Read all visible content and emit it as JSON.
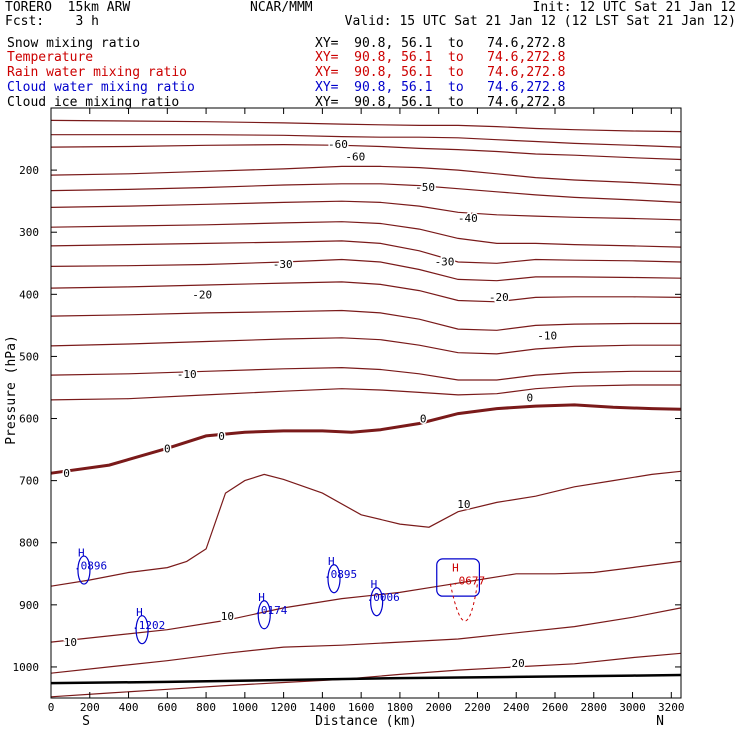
{
  "header": {
    "model": "TORERO  15km ARW",
    "center": "NCAR/MMM",
    "init": "Init: 12 UTC Sat 21 Jan 12",
    "fcst": "Fcst:    3 h",
    "valid": "Valid: 15 UTC Sat 21 Jan 12 (12 LST Sat 21 Jan 12)"
  },
  "colors": {
    "temperature": "#7a1a1a",
    "rain": "#cc0000",
    "cloud_water": "#0000cc",
    "ground": "#000000"
  },
  "chart_data": {
    "type": "cross-section contour",
    "fields": [
      {
        "name": "Snow mixing ratio",
        "color": "#000000",
        "xy": "XY=  90.8, 56.1  to   74.6,272.8"
      },
      {
        "name": "Temperature",
        "color": "#cc0000",
        "xy": "XY=  90.8, 56.1  to   74.6,272.8"
      },
      {
        "name": "Rain water mixing ratio",
        "color": "#cc0000",
        "xy": "XY=  90.8, 56.1  to   74.6,272.8"
      },
      {
        "name": "Cloud water mixing ratio",
        "color": "#0000cc",
        "xy": "XY=  90.8, 56.1  to   74.6,272.8"
      },
      {
        "name": "Cloud ice mixing ratio",
        "color": "#000000",
        "xy": "XY=  90.8, 56.1  to   74.6,272.8"
      }
    ],
    "xlabel": "Distance (km)",
    "ylabel": "Pressure (hPa)",
    "xlim": [
      0,
      3250
    ],
    "ylim": [
      1050,
      100
    ],
    "x_ticks": [
      0,
      200,
      400,
      600,
      800,
      1000,
      1200,
      1400,
      1600,
      1800,
      2000,
      2200,
      2400,
      2600,
      2800,
      3000,
      3200
    ],
    "y_ticks": [
      200,
      300,
      400,
      500,
      600,
      700,
      800,
      900,
      1000
    ],
    "end_labels": {
      "left": "S",
      "right": "N"
    },
    "temperature_isotherms": [
      {
        "x": [
          0,
          400,
          800,
          1200,
          1500,
          1700,
          1900,
          2100,
          2300,
          2500,
          2700,
          3000,
          3250
        ],
        "y": [
          120,
          121,
          122,
          124,
          126,
          127,
          128,
          128,
          130,
          133,
          135,
          137,
          138
        ]
      },
      {
        "x": [
          0,
          400,
          800,
          1200,
          1500,
          1700,
          1900,
          2100,
          2300,
          2500,
          2700,
          3000,
          3250
        ],
        "y": [
          143,
          143,
          143,
          144,
          146,
          147,
          147,
          148,
          151,
          154,
          157,
          160,
          163
        ]
      },
      {
        "x": [
          0,
          400,
          800,
          1200,
          1500,
          1700,
          1900,
          2100,
          2300,
          2500,
          2700,
          3000,
          3250
        ],
        "y": [
          163,
          162,
          160,
          159,
          160,
          162,
          165,
          167,
          170,
          174,
          176,
          180,
          183
        ],
        "label": "-60",
        "lx": 1480,
        "ly": 158
      },
      {
        "x": [
          0,
          400,
          800,
          1200,
          1500,
          1700,
          1900,
          2100,
          2300,
          2500,
          2700,
          3000,
          3250
        ],
        "y": [
          208,
          206,
          202,
          198,
          194,
          194,
          196,
          200,
          206,
          212,
          216,
          220,
          224
        ],
        "label": "-60",
        "lx": 1570,
        "ly": 178
      },
      {
        "x": [
          0,
          400,
          800,
          1200,
          1500,
          1700,
          1900,
          2100,
          2300,
          2500,
          2700,
          3000,
          3250
        ],
        "y": [
          233,
          231,
          228,
          224,
          222,
          222,
          225,
          230,
          235,
          240,
          244,
          248,
          252
        ],
        "label": "-50",
        "lx": 1930,
        "ly": 227
      },
      {
        "x": [
          0,
          400,
          800,
          1200,
          1500,
          1700,
          1900,
          2100,
          2300,
          2500,
          2700,
          3000,
          3250
        ],
        "y": [
          260,
          258,
          255,
          252,
          250,
          252,
          258,
          268,
          272,
          274,
          276,
          278,
          280
        ],
        "label": "-40",
        "lx": 2150,
        "ly": 277
      },
      {
        "x": [
          0,
          400,
          800,
          1200,
          1500,
          1700,
          1900,
          2100,
          2300,
          2500,
          2700,
          3000,
          3250
        ],
        "y": [
          292,
          290,
          288,
          285,
          283,
          286,
          295,
          310,
          318,
          318,
          320,
          322,
          324
        ]
      },
      {
        "x": [
          0,
          400,
          800,
          1200,
          1500,
          1700,
          1900,
          2100,
          2300,
          2500,
          2700,
          3000,
          3250
        ],
        "y": [
          322,
          320,
          318,
          316,
          314,
          318,
          330,
          348,
          350,
          344,
          345,
          346,
          348
        ],
        "label": "-30",
        "lx": 1195,
        "ly": 351
      },
      {
        "x": [
          0,
          400,
          800,
          1200,
          1500,
          1700,
          1900,
          2100,
          2300,
          2500,
          2700,
          3000,
          3250
        ],
        "y": [
          355,
          354,
          352,
          348,
          344,
          348,
          360,
          376,
          378,
          372,
          372,
          373,
          374
        ],
        "label": "-30",
        "lx": 2030,
        "ly": 347
      },
      {
        "x": [
          0,
          400,
          800,
          1200,
          1500,
          1700,
          1900,
          2100,
          2300,
          2500,
          2700,
          3000,
          3250
        ],
        "y": [
          390,
          388,
          385,
          382,
          380,
          384,
          394,
          410,
          412,
          405,
          404,
          404,
          405
        ],
        "label": "-20",
        "lx": 780,
        "ly": 400
      },
      {
        "x": [
          0,
          400,
          800,
          1200,
          1500,
          1700,
          1900,
          2100,
          2300,
          2500,
          2700,
          3000,
          3250
        ],
        "y": [
          435,
          433,
          430,
          428,
          426,
          430,
          440,
          456,
          458,
          450,
          448,
          447,
          447
        ],
        "label": "-20",
        "lx": 2310,
        "ly": 404
      },
      {
        "x": [
          0,
          400,
          800,
          1200,
          1500,
          1700,
          1900,
          2100,
          2300,
          2500,
          2700,
          3000,
          3250
        ],
        "y": [
          483,
          480,
          476,
          472,
          470,
          473,
          482,
          494,
          496,
          488,
          484,
          482,
          482
        ],
        "label": "-10",
        "lx": 2560,
        "ly": 466
      },
      {
        "x": [
          0,
          400,
          800,
          1200,
          1500,
          1700,
          1900,
          2100,
          2300,
          2500,
          2700,
          3000,
          3250
        ],
        "y": [
          530,
          528,
          524,
          520,
          518,
          521,
          528,
          538,
          538,
          530,
          526,
          524,
          524
        ],
        "label": "-10",
        "lx": 700,
        "ly": 528
      },
      {
        "x": [
          0,
          400,
          800,
          1200,
          1500,
          1700,
          1900,
          2100,
          2300,
          2500,
          2700,
          3000,
          3250
        ],
        "y": [
          570,
          568,
          562,
          556,
          552,
          554,
          558,
          562,
          560,
          552,
          548,
          546,
          546
        ]
      }
    ],
    "zero_isotherm": {
      "x": [
        0,
        300,
        600,
        800,
        1000,
        1200,
        1400,
        1550,
        1700,
        1900,
        2100,
        2300,
        2500,
        2700,
        2900,
        3100,
        3250
      ],
      "y": [
        688,
        675,
        648,
        628,
        622,
        620,
        620,
        622,
        618,
        608,
        592,
        584,
        580,
        578,
        582,
        584,
        585
      ],
      "labels": [
        {
          "v": "0",
          "x": 80,
          "y": 688
        },
        {
          "v": "0",
          "x": 600,
          "y": 648
        },
        {
          "v": "0",
          "x": 880,
          "y": 628
        },
        {
          "v": "0",
          "x": 1920,
          "y": 600
        },
        {
          "v": "0",
          "x": 2470,
          "y": 566
        }
      ]
    },
    "warm_isotherms": [
      {
        "x": [
          0,
          200,
          400,
          600,
          700,
          800,
          900,
          1000,
          1100,
          1200,
          1400,
          1600,
          1800,
          1950,
          2100,
          2300,
          2500,
          2700,
          2900,
          3100,
          3250
        ],
        "y": [
          870,
          860,
          848,
          840,
          830,
          810,
          720,
          700,
          690,
          698,
          720,
          755,
          770,
          775,
          750,
          735,
          725,
          710,
          700,
          690,
          685
        ],
        "label": "10",
        "lx": 2130,
        "ly": 738
      },
      {
        "x": [
          0,
          300,
          600,
          900,
          1200,
          1500,
          1800,
          2000,
          2200,
          2400,
          2600,
          2800,
          3000,
          3250
        ],
        "y": [
          960,
          950,
          940,
          925,
          905,
          890,
          880,
          870,
          860,
          850,
          850,
          848,
          840,
          830
        ],
        "label": "10",
        "lx": 910,
        "ly": 918
      },
      {
        "x": [
          0,
          300,
          600,
          900,
          1200,
          1500,
          1800,
          2100,
          2400,
          2700,
          3000,
          3250
        ],
        "y": [
          1010,
          1000,
          990,
          978,
          968,
          965,
          960,
          955,
          945,
          935,
          920,
          905
        ],
        "label": "10",
        "lx": 100,
        "ly": 960
      },
      {
        "x": [
          0,
          300,
          600,
          900,
          1200,
          1500,
          1800,
          2100,
          2400,
          2700,
          3000,
          3250
        ],
        "y": [
          1048,
          1042,
          1036,
          1030,
          1025,
          1020,
          1012,
          1005,
          1000,
          995,
          985,
          978
        ],
        "label": "20",
        "lx": 2410,
        "ly": 994
      }
    ],
    "ground_surface": {
      "x": [
        0,
        600,
        1200,
        1800,
        2400,
        3000,
        3250
      ],
      "y": [
        1026,
        1024,
        1021,
        1018,
        1016,
        1014,
        1013
      ]
    },
    "cloud_water_maxima": [
      {
        "label": "H",
        "value": ".0896",
        "x": 170,
        "y": 822
      },
      {
        "label": "H",
        "value": ".1202",
        "x": 470,
        "y": 918
      },
      {
        "label": "H",
        "value": ".0174",
        "x": 1100,
        "y": 894
      },
      {
        "label": "H",
        "value": ".0006",
        "x": 1680,
        "y": 873
      },
      {
        "label": "H",
        "value": ".0895",
        "x": 1460,
        "y": 836
      }
    ],
    "rain_maxima": [
      {
        "label": "H",
        "value": ".0677",
        "x": 2100,
        "y": 846
      }
    ]
  }
}
